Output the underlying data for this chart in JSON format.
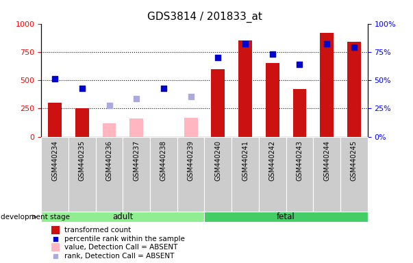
{
  "title": "GDS3814 / 201833_at",
  "samples": [
    "GSM440234",
    "GSM440235",
    "GSM440236",
    "GSM440237",
    "GSM440238",
    "GSM440239",
    "GSM440240",
    "GSM440241",
    "GSM440242",
    "GSM440243",
    "GSM440244",
    "GSM440245"
  ],
  "transformed_count": [
    300,
    250,
    null,
    null,
    null,
    null,
    600,
    850,
    650,
    420,
    920,
    840
  ],
  "absent_value": [
    null,
    null,
    120,
    160,
    null,
    170,
    null,
    null,
    null,
    null,
    null,
    null
  ],
  "percentile_rank": [
    510,
    430,
    null,
    null,
    430,
    null,
    700,
    820,
    730,
    640,
    820,
    790
  ],
  "absent_rank": [
    null,
    null,
    275,
    340,
    null,
    355,
    null,
    null,
    null,
    null,
    null,
    null
  ],
  "detection_call": [
    "P",
    "P",
    "A",
    "A",
    "P",
    "A",
    "P",
    "P",
    "P",
    "P",
    "P",
    "P"
  ],
  "group_adult": [
    0,
    6
  ],
  "group_fetal": [
    6,
    12
  ],
  "group_adult_color": "#90EE90",
  "group_fetal_color": "#44CC66",
  "bar_color_present": "#CC1111",
  "bar_color_absent": "#FFB6C1",
  "dot_color_present": "#0000CC",
  "dot_color_absent": "#AAAADD",
  "ylim_left": [
    0,
    1000
  ],
  "ylim_right": [
    0,
    100
  ],
  "yticks_left": [
    0,
    250,
    500,
    750,
    1000
  ],
  "yticks_right": [
    0,
    25,
    50,
    75,
    100
  ],
  "grid_lines": [
    250,
    500,
    750
  ],
  "legend_items": [
    {
      "label": "transformed count",
      "color": "#CC1111",
      "type": "bar"
    },
    {
      "label": "percentile rank within the sample",
      "color": "#0000CC",
      "type": "dot"
    },
    {
      "label": "value, Detection Call = ABSENT",
      "color": "#FFB6C1",
      "type": "bar"
    },
    {
      "label": "rank, Detection Call = ABSENT",
      "color": "#AAAADD",
      "type": "dot"
    }
  ],
  "annotation_label": "development stage",
  "bar_width": 0.5,
  "dot_size": 40,
  "xticklabel_fontsize": 7,
  "title_fontsize": 11
}
